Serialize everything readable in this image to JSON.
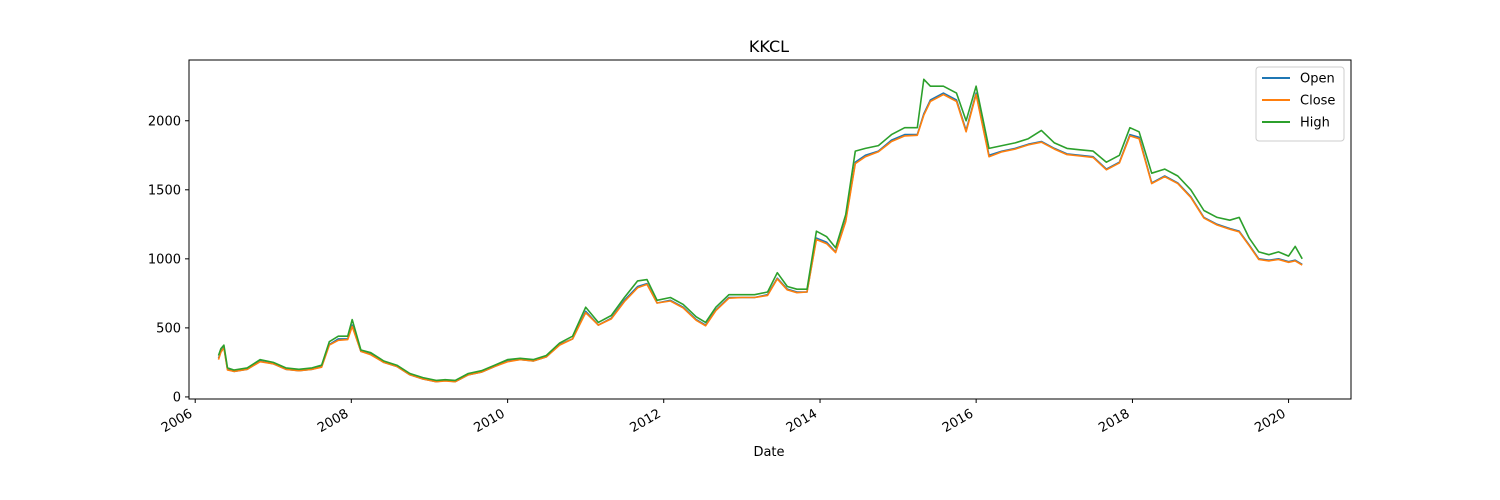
{
  "chart_data": {
    "type": "line",
    "title": "KKCL",
    "xlabel": "Date",
    "ylabel": "",
    "xlim": [
      "2005-12-03",
      "2020-10-19"
    ],
    "ylim": [
      -15,
      2440
    ],
    "x_ticks": [
      "2006",
      "2008",
      "2010",
      "2012",
      "2014",
      "2016",
      "2018",
      "2020"
    ],
    "y_ticks": [
      0,
      500,
      1000,
      1500,
      2000
    ],
    "legend": {
      "placement": "top-right"
    },
    "grid": false,
    "x": [
      "2006-04-20",
      "2006-05-01",
      "2006-05-15",
      "2006-06-01",
      "2006-07-01",
      "2006-09-01",
      "2006-11-01",
      "2007-01-01",
      "2007-03-01",
      "2007-05-01",
      "2007-07-01",
      "2007-08-15",
      "2007-09-20",
      "2007-11-01",
      "2007-12-15",
      "2008-01-05",
      "2008-02-15",
      "2008-04-01",
      "2008-06-01",
      "2008-08-01",
      "2008-10-01",
      "2008-12-01",
      "2009-02-01",
      "2009-03-15",
      "2009-05-01",
      "2009-07-01",
      "2009-09-01",
      "2009-11-01",
      "2010-01-01",
      "2010-03-01",
      "2010-05-01",
      "2010-07-01",
      "2010-09-01",
      "2010-11-01",
      "2011-01-01",
      "2011-03-01",
      "2011-05-01",
      "2011-07-01",
      "2011-09-01",
      "2011-10-15",
      "2011-12-01",
      "2012-02-01",
      "2012-04-01",
      "2012-06-01",
      "2012-07-15",
      "2012-09-01",
      "2012-11-01",
      "2013-01-01",
      "2013-03-01",
      "2013-05-01",
      "2013-06-15",
      "2013-08-01",
      "2013-09-15",
      "2013-11-01",
      "2013-12-15",
      "2014-02-01",
      "2014-03-15",
      "2014-05-01",
      "2014-06-15",
      "2014-08-01",
      "2014-10-01",
      "2014-12-01",
      "2015-02-01",
      "2015-04-01",
      "2015-05-01",
      "2015-06-01",
      "2015-08-01",
      "2015-10-01",
      "2015-11-15",
      "2016-01-01",
      "2016-03-01",
      "2016-05-01",
      "2016-07-01",
      "2016-09-01",
      "2016-11-01",
      "2017-01-01",
      "2017-03-01",
      "2017-05-01",
      "2017-07-01",
      "2017-09-01",
      "2017-11-01",
      "2017-12-20",
      "2018-02-01",
      "2018-04-01",
      "2018-06-01",
      "2018-08-01",
      "2018-10-01",
      "2018-12-01",
      "2019-02-01",
      "2019-04-01",
      "2019-05-15",
      "2019-07-01",
      "2019-08-15",
      "2019-10-01",
      "2019-11-15",
      "2020-01-01",
      "2020-02-01",
      "2020-03-05"
    ],
    "series": [
      {
        "name": "Open",
        "color": "#1f77b4",
        "values": [
          280,
          330,
          360,
          200,
          185,
          200,
          260,
          240,
          200,
          190,
          200,
          220,
          380,
          420,
          420,
          520,
          330,
          310,
          250,
          220,
          160,
          130,
          110,
          120,
          110,
          160,
          180,
          220,
          260,
          270,
          260,
          290,
          380,
          420,
          620,
          520,
          570,
          700,
          800,
          820,
          680,
          700,
          650,
          560,
          520,
          630,
          720,
          720,
          720,
          740,
          860,
          780,
          760,
          760,
          1150,
          1120,
          1050,
          1280,
          1700,
          1750,
          1780,
          1860,
          1900,
          1900,
          2050,
          2150,
          2200,
          2150,
          1930,
          2200,
          1750,
          1780,
          1800,
          1830,
          1850,
          1800,
          1760,
          1750,
          1740,
          1650,
          1700,
          1900,
          1880,
          1550,
          1600,
          1550,
          1450,
          1300,
          1250,
          1220,
          1200,
          1100,
          1000,
          990,
          1000,
          980,
          990,
          960
        ]
      },
      {
        "name": "Close",
        "color": "#ff7f0e",
        "values": [
          270,
          325,
          355,
          195,
          185,
          200,
          255,
          240,
          200,
          190,
          200,
          215,
          375,
          410,
          415,
          510,
          330,
          305,
          250,
          220,
          160,
          130,
          110,
          115,
          110,
          160,
          180,
          220,
          255,
          270,
          260,
          290,
          375,
          420,
          610,
          520,
          565,
          690,
          790,
          815,
          680,
          695,
          645,
          555,
          515,
          625,
          715,
          720,
          720,
          735,
          855,
          775,
          755,
          760,
          1140,
          1110,
          1045,
          1270,
          1690,
          1740,
          1775,
          1850,
          1890,
          1895,
          2040,
          2140,
          2190,
          2140,
          1920,
          2190,
          1740,
          1775,
          1795,
          1825,
          1845,
          1795,
          1755,
          1745,
          1735,
          1645,
          1695,
          1890,
          1870,
          1545,
          1595,
          1545,
          1445,
          1295,
          1245,
          1215,
          1195,
          1095,
          995,
          985,
          995,
          975,
          985,
          955
        ]
      },
      {
        "name": "High",
        "color": "#2ca02c",
        "values": [
          300,
          350,
          375,
          210,
          195,
          210,
          270,
          250,
          210,
          200,
          210,
          230,
          400,
          440,
          440,
          560,
          340,
          320,
          260,
          230,
          170,
          140,
          120,
          125,
          120,
          170,
          190,
          230,
          270,
          280,
          270,
          300,
          390,
          440,
          650,
          540,
          590,
          720,
          840,
          850,
          700,
          720,
          670,
          580,
          540,
          650,
          740,
          740,
          740,
          760,
          900,
          800,
          780,
          780,
          1200,
          1160,
          1080,
          1320,
          1780,
          1800,
          1820,
          1900,
          1950,
          1950,
          2300,
          2250,
          2250,
          2200,
          2000,
          2250,
          1800,
          1820,
          1840,
          1870,
          1930,
          1840,
          1800,
          1790,
          1780,
          1700,
          1750,
          1950,
          1920,
          1620,
          1650,
          1600,
          1500,
          1350,
          1300,
          1280,
          1300,
          1150,
          1050,
          1030,
          1050,
          1020,
          1090,
          1000
        ]
      }
    ]
  }
}
